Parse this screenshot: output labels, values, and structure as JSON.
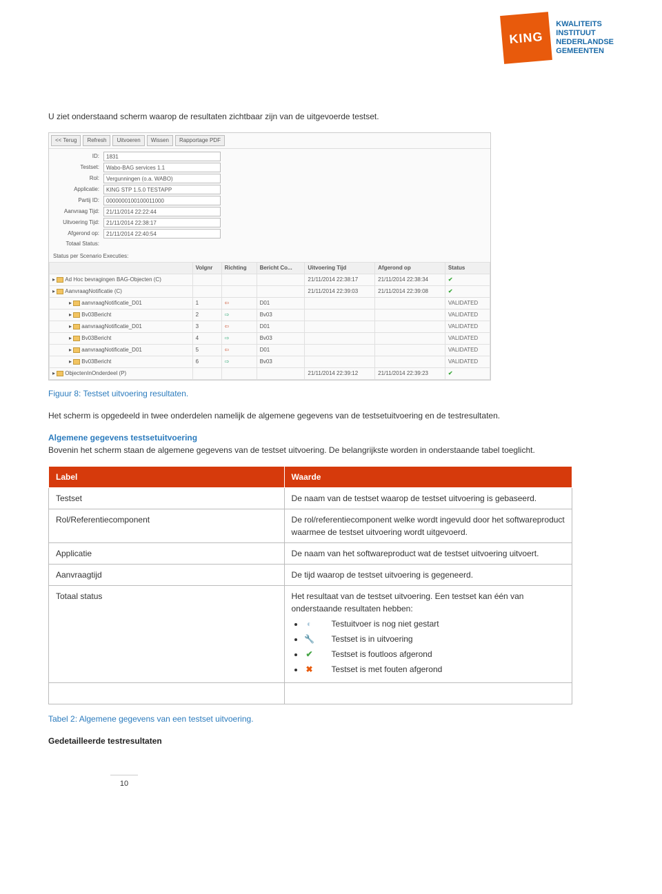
{
  "logo": {
    "brand": "KING",
    "line1": "KWALITEITS",
    "line2": "INSTITUUT",
    "line3": "NEDERLANDSE",
    "line4": "GEMEENTEN"
  },
  "intro": "U ziet onderstaand scherm waarop de resultaten zichtbaar zijn van de uitgevoerde testset.",
  "screenshot": {
    "buttons": [
      "<< Terug",
      "Refresh",
      "Uitvoeren",
      "Wissen",
      "Rapportage PDF"
    ],
    "fields": {
      "id": {
        "label": "ID:",
        "value": "1831"
      },
      "testset": {
        "label": "Testset:",
        "value": "Wabo-BAG services 1.1"
      },
      "rol": {
        "label": "Rol:",
        "value": "Vergunningen (o.a. WABO)"
      },
      "applicatie": {
        "label": "Applicatie:",
        "value": "KING STP 1.5.0 TESTAPP"
      },
      "partij": {
        "label": "Partij ID:",
        "value": "0000000100100011000"
      },
      "aanvraag": {
        "label": "Aanvraag Tijd:",
        "value": "21/11/2014 22:22:44"
      },
      "uitvoering": {
        "label": "Uitvoering Tijd:",
        "value": "21/11/2014 22:38:17"
      },
      "afgerond": {
        "label": "Afgerond op:",
        "value": "21/11/2014 22:40:54"
      },
      "totaal": {
        "label": "Totaal Status:",
        "value": ""
      }
    },
    "status_label": "Status per Scenario Executies:",
    "columns": [
      "",
      "Volgnr",
      "Richting",
      "Bericht Co...",
      "Uitvoering Tijd",
      "Afgerond op",
      "Status"
    ],
    "rows": [
      {
        "name": "Ad Hoc bevragingen BAG-Objecten (C)",
        "level": 1,
        "volgnr": "",
        "richting": "",
        "code": "",
        "uitv": "21/11/2014 22:38:17",
        "afg": "21/11/2014 22:38:34",
        "status": "✔"
      },
      {
        "name": "AanvraagNotificatie (C)",
        "level": 1,
        "volgnr": "",
        "richting": "",
        "code": "",
        "uitv": "21/11/2014 22:39:03",
        "afg": "21/11/2014 22:39:08",
        "status": "✔"
      },
      {
        "name": "aanvraagNotificatie_D01",
        "level": 2,
        "volgnr": "1",
        "richting": "in",
        "code": "D01",
        "uitv": "",
        "afg": "",
        "status": "VALIDATED"
      },
      {
        "name": "Bv03Bericht",
        "level": 2,
        "volgnr": "2",
        "richting": "out",
        "code": "Bv03",
        "uitv": "",
        "afg": "",
        "status": "VALIDATED"
      },
      {
        "name": "aanvraagNotificatie_D01",
        "level": 2,
        "volgnr": "3",
        "richting": "in",
        "code": "D01",
        "uitv": "",
        "afg": "",
        "status": "VALIDATED"
      },
      {
        "name": "Bv03Bericht",
        "level": 2,
        "volgnr": "4",
        "richting": "out",
        "code": "Bv03",
        "uitv": "",
        "afg": "",
        "status": "VALIDATED"
      },
      {
        "name": "aanvraagNotificatie_D01",
        "level": 2,
        "volgnr": "5",
        "richting": "in",
        "code": "D01",
        "uitv": "",
        "afg": "",
        "status": "VALIDATED"
      },
      {
        "name": "Bv03Bericht",
        "level": 2,
        "volgnr": "6",
        "richting": "out",
        "code": "Bv03",
        "uitv": "",
        "afg": "",
        "status": "VALIDATED"
      },
      {
        "name": "ObjectenInOnderdeel (P)",
        "level": 1,
        "volgnr": "",
        "richting": "",
        "code": "",
        "uitv": "21/11/2014 22:39:12",
        "afg": "21/11/2014 22:39:23",
        "status": "✔"
      }
    ]
  },
  "caption_fig": "Figuur 8: Testset uitvoering resultaten.",
  "para2": "Het scherm is opgedeeld in twee onderdelen namelijk de algemene gegevens van de testsetuitvoering en de testresultaten.",
  "section_h": "Algemene gegevens testsetuitvoering",
  "para3": "Bovenin het scherm staan de algemene gegevens van de testset uitvoering. De belangrijkste worden in onderstaande tabel toeglicht.",
  "def_table": {
    "head": [
      "Label",
      "Waarde"
    ],
    "rows": [
      {
        "label": "Testset",
        "value": "De naam van de testset waarop de testset uitvoering is gebaseerd."
      },
      {
        "label": "Rol/Referentiecomponent",
        "value": "De rol/referentiecomponent welke wordt ingevuld door het softwareproduct waarmee de testset uitvoering wordt uitgevoerd."
      },
      {
        "label": "Applicatie",
        "value": "De naam van het softwareproduct wat de testset uitvoering uitvoert."
      },
      {
        "label": "Aanvraagtijd",
        "value": "De tijd waarop de testset uitvoering is gegeneerd."
      },
      {
        "label": "Totaal status",
        "value": "Het resultaat van de testset uitvoering. Een testset kan één van onderstaande resultaten hebben:"
      }
    ],
    "statuses": [
      {
        "icon": "wait",
        "text": "Testuitvoer is nog niet gestart"
      },
      {
        "icon": "run",
        "text": "Testset is in uitvoering"
      },
      {
        "icon": "ok",
        "text": "Testset is foutloos afgerond"
      },
      {
        "icon": "err",
        "text": "Testset is met fouten afgerond"
      }
    ]
  },
  "caption_tbl": "Tabel 2: Algemene gegevens van een testset uitvoering.",
  "sub_h": "Gedetailleerde testresultaten",
  "page_num": "10"
}
